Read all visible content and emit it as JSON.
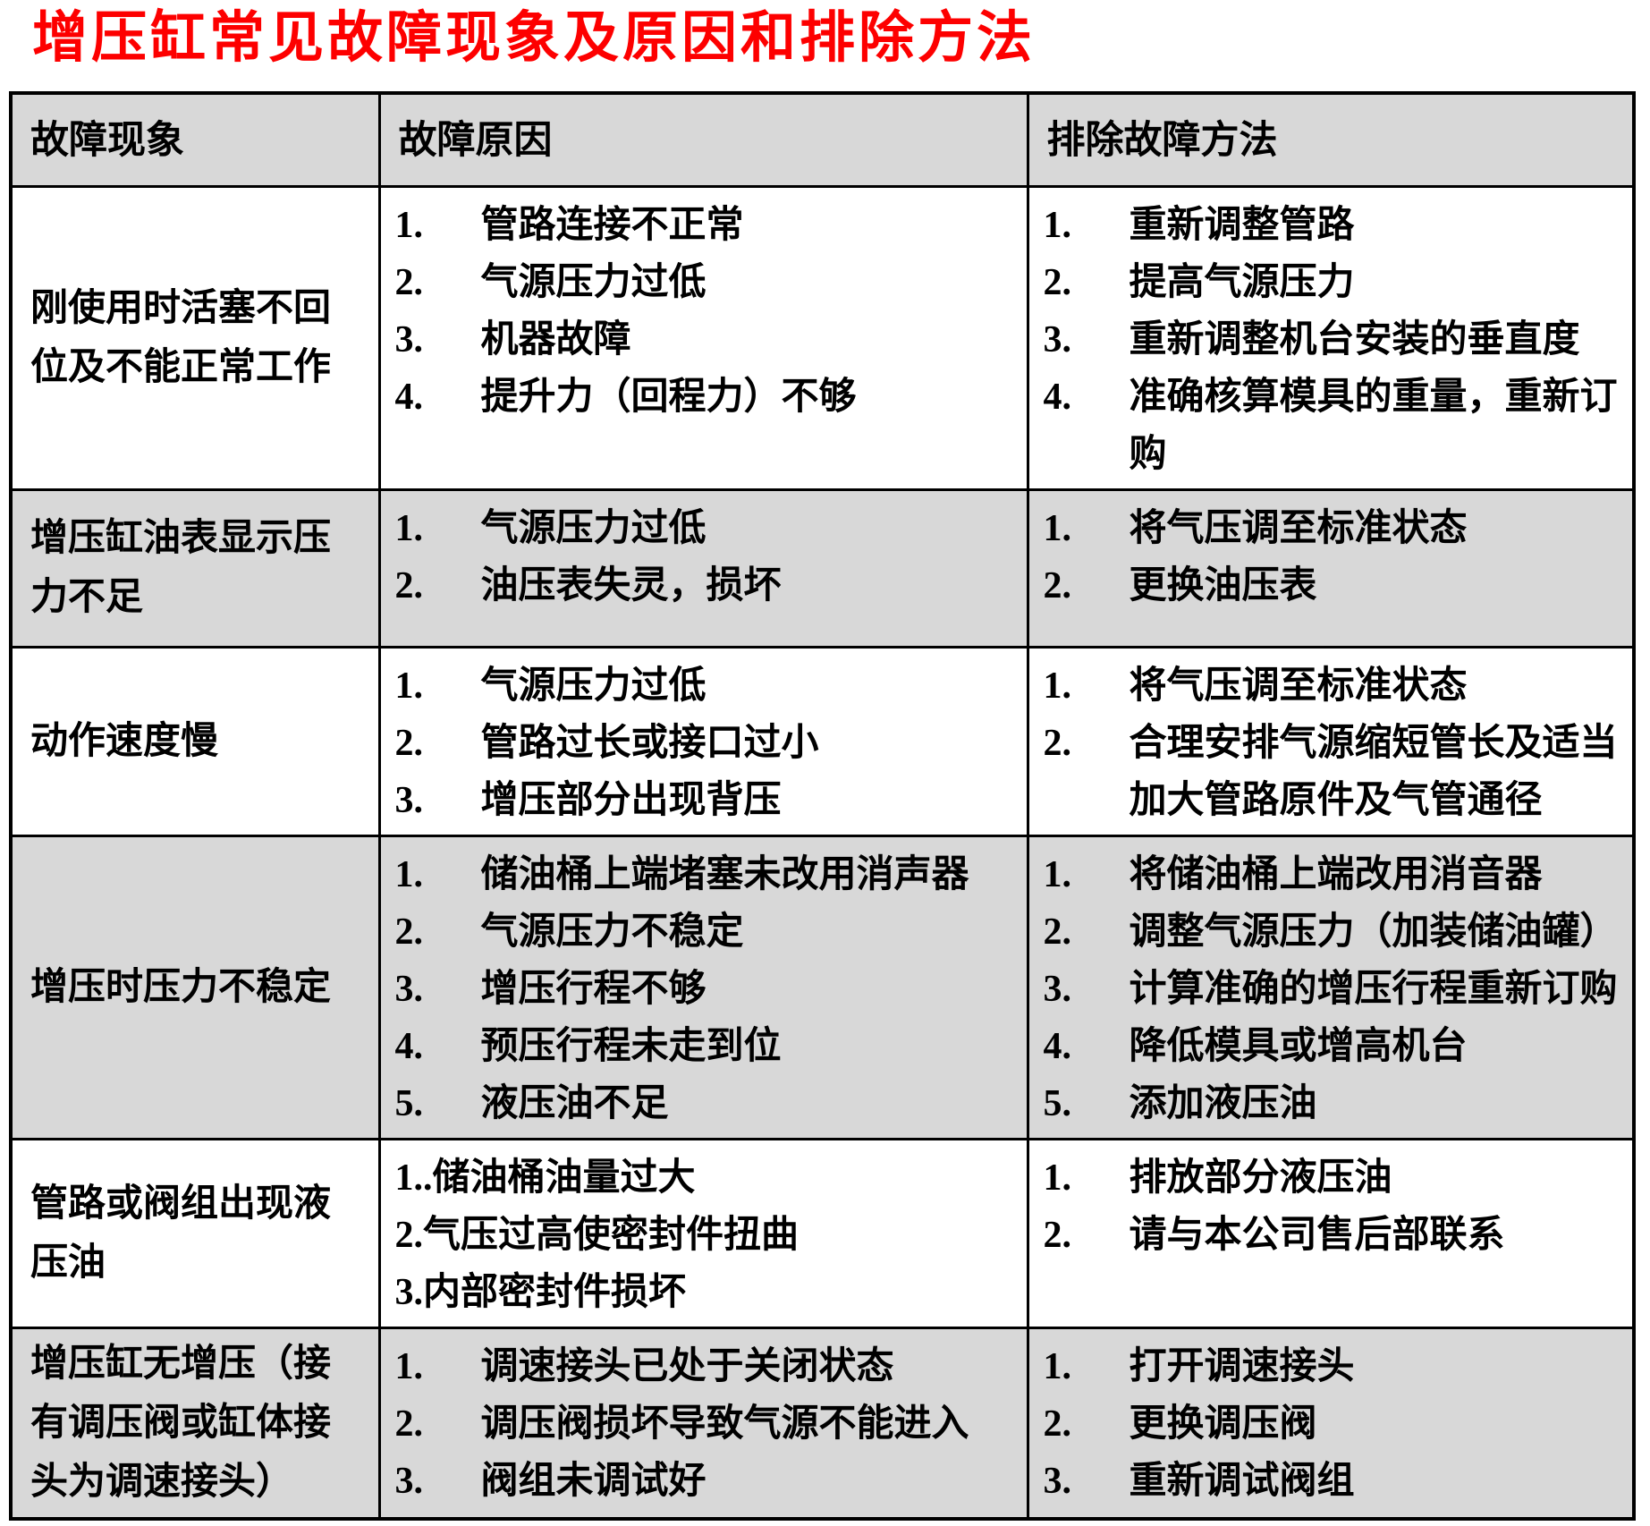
{
  "title": "增压缸常见故障现象及原因和排除方法",
  "colors": {
    "title_red": "#fd0000",
    "shaded_row": "#d8d8d8",
    "border": "#000000"
  },
  "table": {
    "headers": [
      "故障现象",
      "故障原因",
      "排除故障方法"
    ],
    "rows": [
      {
        "phenomenon": "刚使用时活塞不回位及不能正常工作",
        "shaded": false,
        "causes": [
          {
            "n": "1.",
            "t": "管路连接不正常"
          },
          {
            "n": "2.",
            "t": "气源压力过低"
          },
          {
            "n": "3.",
            "t": "机器故障"
          },
          {
            "n": "4.",
            "t": "提升力（回程力）不够"
          }
        ],
        "methods": [
          {
            "n": "1.",
            "t": "重新调整管路"
          },
          {
            "n": "2.",
            "t": "提高气源压力"
          },
          {
            "n": "3.",
            "t": "重新调整机台安装的垂直度"
          },
          {
            "n": "4.",
            "t": "准确核算模具的重量，重新订购"
          }
        ]
      },
      {
        "phenomenon": "增压缸油表显示压力不足",
        "shaded": true,
        "causes": [
          {
            "n": "1.",
            "t": "气源压力过低"
          },
          {
            "n": "2.",
            "t": "油压表失灵，损坏"
          }
        ],
        "methods": [
          {
            "n": "1.",
            "t": "将气压调至标准状态"
          },
          {
            "n": "2.",
            "t": "更换油压表"
          }
        ]
      },
      {
        "phenomenon": "动作速度慢",
        "shaded": false,
        "causes": [
          {
            "n": "1.",
            "t": "气源压力过低"
          },
          {
            "n": "2.",
            "t": "管路过长或接口过小"
          },
          {
            "n": "3.",
            "t": "增压部分出现背压"
          }
        ],
        "methods": [
          {
            "n": "1.",
            "t": "将气压调至标准状态"
          },
          {
            "n": "2.",
            "t": "合理安排气源缩短管长及适当加大管路原件及气管通径"
          }
        ]
      },
      {
        "phenomenon": "增压时压力不稳定",
        "shaded": true,
        "causes": [
          {
            "n": "1.",
            "t": "储油桶上端堵塞未改用消声器"
          },
          {
            "n": "2.",
            "t": "气源压力不稳定"
          },
          {
            "n": "3.",
            "t": "增压行程不够"
          },
          {
            "n": "4.",
            "t": "预压行程未走到位"
          },
          {
            "n": "5.",
            "t": "液压油不足"
          }
        ],
        "methods": [
          {
            "n": "1.",
            "t": "将储油桶上端改用消音器"
          },
          {
            "n": "2.",
            "t": "调整气源压力（加装储油罐）"
          },
          {
            "n": "3.",
            "t": "计算准确的增压行程重新订购"
          },
          {
            "n": "4.",
            "t": "降低模具或增高机台"
          },
          {
            "n": "5.",
            "t": "添加液压油"
          }
        ]
      },
      {
        "phenomenon": "管路或阀组出现液压油",
        "shaded": false,
        "causes": [
          {
            "n": "1..",
            "t": "储油桶油量过大",
            "tight": true
          },
          {
            "n": "2.",
            "t": "气压过高使密封件扭曲",
            "tight": true
          },
          {
            "n": "3.",
            "t": "内部密封件损坏",
            "tight": true
          }
        ],
        "methods": [
          {
            "n": "1.",
            "t": "排放部分液压油"
          },
          {
            "n": "2.",
            "t": "请与本公司售后部联系"
          }
        ]
      },
      {
        "phenomenon": "增压缸无增压（接有调压阀或缸体接头为调速接头）",
        "shaded": true,
        "causes": [
          {
            "n": "1.",
            "t": "调速接头已处于关闭状态"
          },
          {
            "n": "2.",
            "t": "调压阀损坏导致气源不能进入"
          },
          {
            "n": "3.",
            "t": "阀组未调试好"
          }
        ],
        "methods": [
          {
            "n": "1.",
            "t": "打开调速接头"
          },
          {
            "n": "2.",
            "t": "更换调压阀"
          },
          {
            "n": "3.",
            "t": "重新调试阀组"
          }
        ]
      }
    ]
  }
}
